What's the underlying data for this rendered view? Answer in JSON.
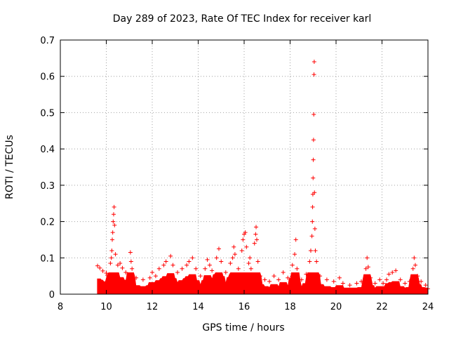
{
  "chart_data": {
    "type": "scatter",
    "title": "Day 289 of 2023, Rate Of TEC Index for receiver karl",
    "xlabel": "GPS time / hours",
    "ylabel": "ROTI / TECUs",
    "xlim": [
      8,
      24
    ],
    "ylim": [
      0,
      0.7
    ],
    "xticks": [
      "8",
      "10",
      "12",
      "14",
      "16",
      "18",
      "20",
      "22",
      "24"
    ],
    "yticks": [
      "0",
      "0.1",
      "0.2",
      "0.3",
      "0.4",
      "0.5",
      "0.6",
      "0.7"
    ],
    "grid": true,
    "marker": "plus",
    "color": "#ff0000",
    "series": [
      {
        "name": "ROTI",
        "points": [
          [
            9.62,
            0.078
          ],
          [
            9.72,
            0.072
          ],
          [
            9.85,
            0.064
          ],
          [
            10.0,
            0.058
          ],
          [
            10.05,
            0.052
          ],
          [
            10.18,
            0.085
          ],
          [
            10.22,
            0.1
          ],
          [
            10.24,
            0.12
          ],
          [
            10.26,
            0.15
          ],
          [
            10.28,
            0.17
          ],
          [
            10.3,
            0.2
          ],
          [
            10.32,
            0.22
          ],
          [
            10.34,
            0.24
          ],
          [
            10.36,
            0.19
          ],
          [
            10.4,
            0.11
          ],
          [
            10.5,
            0.08
          ],
          [
            10.6,
            0.085
          ],
          [
            10.7,
            0.072
          ],
          [
            10.85,
            0.06
          ],
          [
            11.05,
            0.115
          ],
          [
            11.08,
            0.09
          ],
          [
            11.12,
            0.07
          ],
          [
            11.3,
            0.045
          ],
          [
            11.6,
            0.04
          ],
          [
            11.9,
            0.045
          ],
          [
            12.0,
            0.06
          ],
          [
            12.15,
            0.05
          ],
          [
            12.3,
            0.07
          ],
          [
            12.5,
            0.08
          ],
          [
            12.6,
            0.09
          ],
          [
            12.8,
            0.105
          ],
          [
            12.9,
            0.08
          ],
          [
            13.1,
            0.06
          ],
          [
            13.3,
            0.07
          ],
          [
            13.5,
            0.08
          ],
          [
            13.6,
            0.09
          ],
          [
            13.75,
            0.1
          ],
          [
            13.9,
            0.07
          ],
          [
            14.1,
            0.05
          ],
          [
            14.3,
            0.07
          ],
          [
            14.4,
            0.095
          ],
          [
            14.5,
            0.08
          ],
          [
            14.6,
            0.065
          ],
          [
            14.8,
            0.1
          ],
          [
            14.9,
            0.125
          ],
          [
            15.0,
            0.09
          ],
          [
            15.2,
            0.06
          ],
          [
            15.4,
            0.085
          ],
          [
            15.5,
            0.1
          ],
          [
            15.55,
            0.13
          ],
          [
            15.6,
            0.11
          ],
          [
            15.75,
            0.07
          ],
          [
            15.9,
            0.12
          ],
          [
            15.95,
            0.15
          ],
          [
            16.0,
            0.165
          ],
          [
            16.05,
            0.17
          ],
          [
            16.1,
            0.13
          ],
          [
            16.2,
            0.085
          ],
          [
            16.25,
            0.1
          ],
          [
            16.3,
            0.07
          ],
          [
            16.45,
            0.14
          ],
          [
            16.5,
            0.165
          ],
          [
            16.52,
            0.185
          ],
          [
            16.55,
            0.15
          ],
          [
            16.6,
            0.09
          ],
          [
            16.7,
            0.05
          ],
          [
            16.9,
            0.04
          ],
          [
            17.1,
            0.035
          ],
          [
            17.3,
            0.05
          ],
          [
            17.5,
            0.04
          ],
          [
            17.7,
            0.06
          ],
          [
            17.9,
            0.045
          ],
          [
            18.1,
            0.08
          ],
          [
            18.2,
            0.11
          ],
          [
            18.25,
            0.15
          ],
          [
            18.3,
            0.07
          ],
          [
            18.5,
            0.04
          ],
          [
            18.7,
            0.055
          ],
          [
            18.85,
            0.09
          ],
          [
            18.9,
            0.12
          ],
          [
            18.95,
            0.16
          ],
          [
            18.97,
            0.2
          ],
          [
            18.98,
            0.24
          ],
          [
            18.99,
            0.275
          ],
          [
            19.0,
            0.32
          ],
          [
            19.01,
            0.37
          ],
          [
            19.02,
            0.425
          ],
          [
            19.03,
            0.495
          ],
          [
            19.04,
            0.605
          ],
          [
            19.05,
            0.64
          ],
          [
            19.06,
            0.28
          ],
          [
            19.08,
            0.18
          ],
          [
            19.1,
            0.12
          ],
          [
            19.15,
            0.09
          ],
          [
            19.3,
            0.05
          ],
          [
            19.6,
            0.04
          ],
          [
            19.9,
            0.035
          ],
          [
            20.15,
            0.045
          ],
          [
            20.3,
            0.03
          ],
          [
            20.6,
            0.025
          ],
          [
            20.9,
            0.03
          ],
          [
            21.1,
            0.035
          ],
          [
            21.3,
            0.07
          ],
          [
            21.35,
            0.1
          ],
          [
            21.4,
            0.075
          ],
          [
            21.5,
            0.045
          ],
          [
            21.7,
            0.03
          ],
          [
            21.9,
            0.04
          ],
          [
            22.05,
            0.03
          ],
          [
            22.2,
            0.04
          ],
          [
            22.3,
            0.055
          ],
          [
            22.45,
            0.06
          ],
          [
            22.6,
            0.065
          ],
          [
            22.8,
            0.04
          ],
          [
            23.0,
            0.03
          ],
          [
            23.2,
            0.035
          ],
          [
            23.35,
            0.07
          ],
          [
            23.4,
            0.1
          ],
          [
            23.45,
            0.08
          ],
          [
            23.55,
            0.05
          ],
          [
            23.7,
            0.035
          ],
          [
            23.9,
            0.025
          ],
          [
            24.0,
            0.015
          ]
        ]
      }
    ]
  }
}
